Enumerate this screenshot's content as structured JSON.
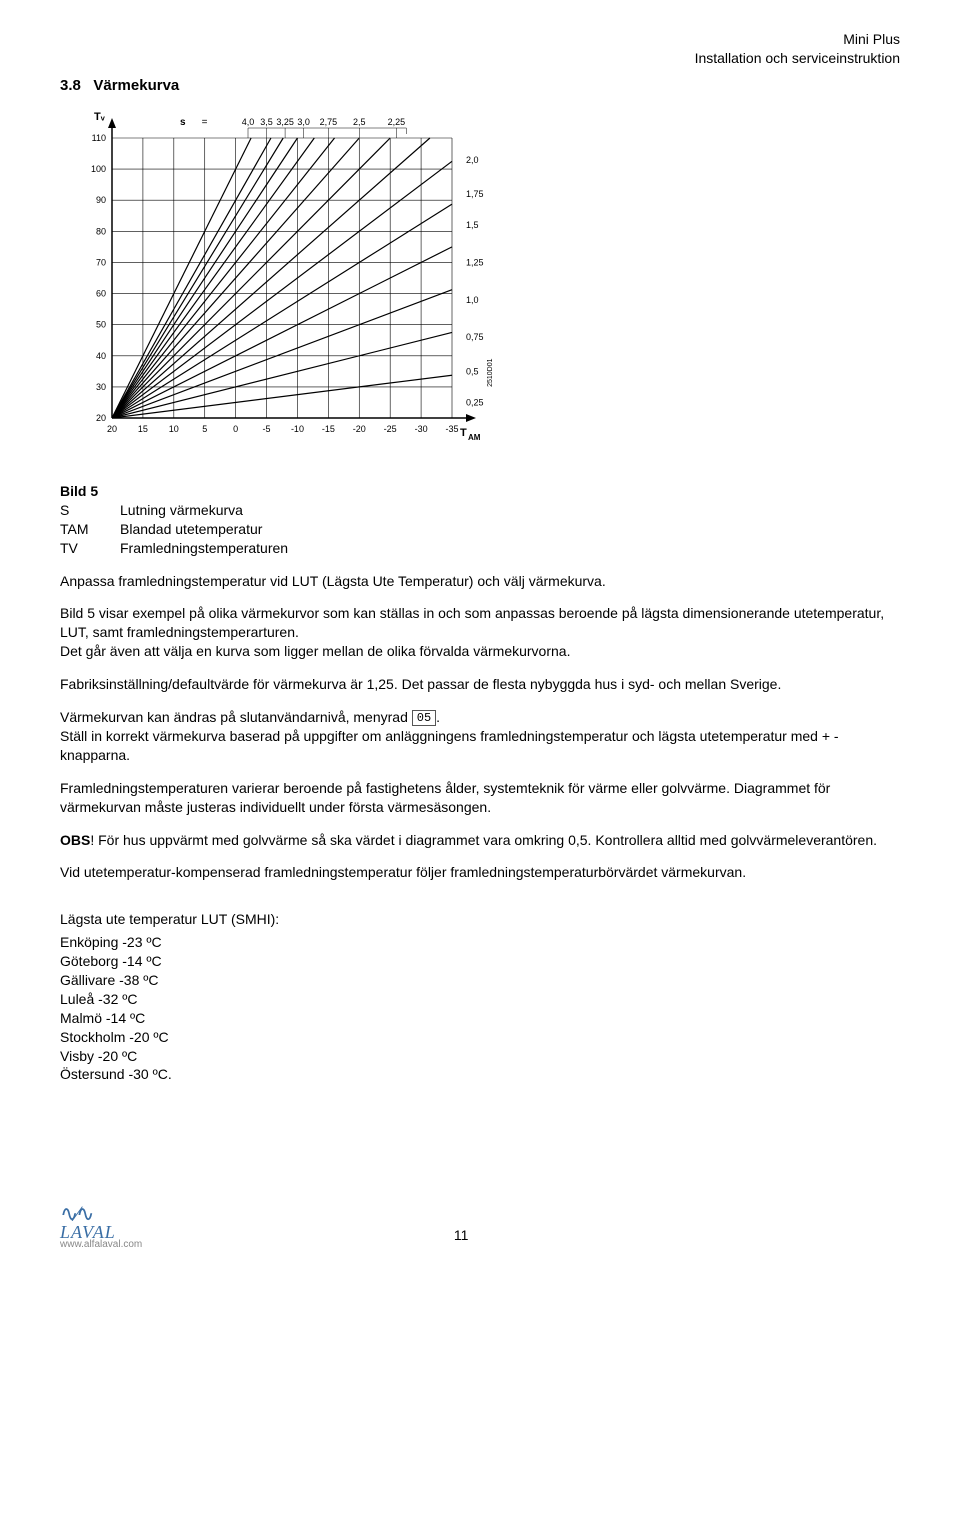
{
  "header": {
    "line1": "Mini Plus",
    "line2": "Installation och serviceinstruktion"
  },
  "section_number": "3.8",
  "section_title": "Värmekurva",
  "chart": {
    "type": "line",
    "y_axis_label": "Tᵥ",
    "y_ticks": [
      20,
      30,
      40,
      50,
      60,
      70,
      80,
      90,
      100,
      110
    ],
    "ylim": [
      20,
      110
    ],
    "x_axis_label": "T_AM",
    "x_ticks": [
      20,
      15,
      10,
      5,
      0,
      -5,
      -10,
      -15,
      -20,
      -25,
      -30,
      -35
    ],
    "xlim": [
      20,
      -35
    ],
    "s_label": "s",
    "equals": "=",
    "top_s_values": [
      "4,0",
      "3,5",
      "3,25",
      "3,0",
      "2,75",
      "2,5",
      "2,25"
    ],
    "top_s_x_at_y110": [
      -2,
      -5,
      -8,
      -11,
      -15,
      -20,
      -26
    ],
    "right_s_values": [
      "2,0",
      "1,75",
      "1,5",
      "1,25",
      "1,0",
      "0,75",
      "0,5",
      "0,25"
    ],
    "right_s_y_at_x-35": [
      103,
      92,
      82,
      70,
      58,
      46,
      35,
      25
    ],
    "line_color": "#000000",
    "line_width": 1.2,
    "grid_color": "#000000",
    "background_color": "#ffffff",
    "font_size": 9,
    "side_code": "2510D01"
  },
  "legend": {
    "title": "Bild 5",
    "rows": [
      {
        "key": "S",
        "desc": "Lutning värmekurva"
      },
      {
        "key": "TAM",
        "desc": "Blandad utetemperatur"
      },
      {
        "key": "TV",
        "desc": "Framledningstemperaturen"
      }
    ]
  },
  "paragraphs": {
    "p1": "Anpassa framledningstemperatur vid LUT (Lägsta Ute Temperatur) och välj värmekurva.",
    "p2": "Bild 5 visar exempel på olika värmekurvor som kan ställas in och som anpassas beroende på lägsta dimensionerande utetemperatur, LUT, samt framledningstemperarturen.",
    "p2b": "Det går även att välja en kurva som ligger mellan de olika förvalda värmekurvorna.",
    "p3": "Fabriksinställning/defaultvärde för värmekurva är 1,25. Det passar de flesta nybyggda hus i syd- och mellan Sverige.",
    "p4a": "Värmekurvan kan ändras på slutanvändarnivå, menyrad ",
    "p4_menu": "05",
    "p4b": ".",
    "p4c": "Ställ in korrekt värmekurva baserad på uppgifter om anläggningens framledningstemperatur och lägsta utetemperatur med + - knapparna.",
    "p5": "Framledningstemperaturen varierar beroende på fastighetens ålder, systemteknik för värme eller golvvärme. Diagrammet för värmekurvan måste justeras individuellt under första värmesäsongen.",
    "p6_obs": "OBS",
    "p6": "! För hus uppvärmt med golvvärme så ska värdet i diagrammet vara omkring 0,5. Kontrollera alltid med golvvärmeleverantören.",
    "p7a": "Vid utetemperatur-kompenserad framledningstemperatur följer ",
    "p7b": "framledningstemperaturbörvärdet värmekurvan."
  },
  "lut": {
    "title": "Lägsta ute temperatur LUT (SMHI):",
    "cities": [
      "Enköping -23 ºC",
      "Göteborg -14 ºC",
      "Gällivare -38 ºC",
      "Luleå -32 ºC",
      "Malmö -14 ºC",
      "Stockholm -20 ºC",
      "Visby -20 ºC",
      "Östersund -30 ºC."
    ]
  },
  "footer": {
    "logo_name": "LAVAL",
    "logo_url": "www.alfalaval.com",
    "page": "11"
  }
}
